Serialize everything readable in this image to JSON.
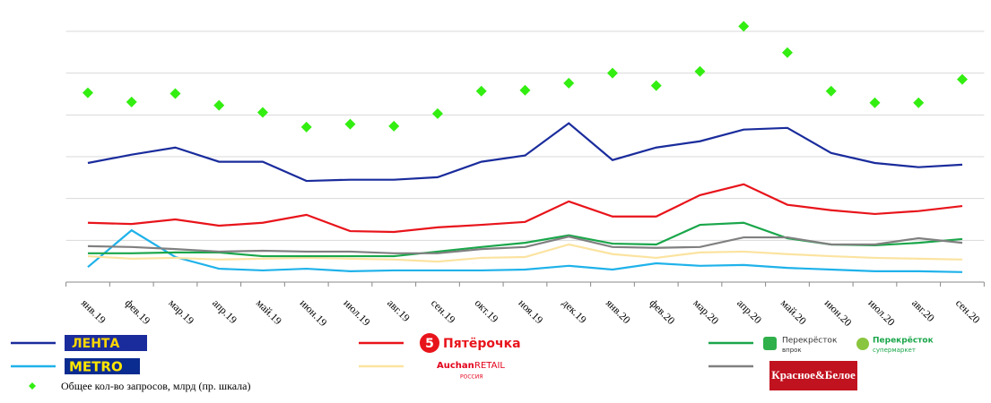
{
  "chart_data": {
    "type": "line",
    "categories": [
      "янв.19",
      "фев.19",
      "мар.19",
      "апр.19",
      "май.19",
      "июн.19",
      "июл.19",
      "авг.19",
      "сен.19",
      "окт.19",
      "ноя.19",
      "дек.19",
      "янв.20",
      "фев.20",
      "мар.20",
      "апр.20",
      "май.20",
      "июн.20",
      "июл.20",
      "авг.20",
      "сен.20"
    ],
    "ylim": [
      0,
      6.5
    ],
    "yticks": [
      0,
      1,
      2,
      3,
      4,
      5,
      6
    ],
    "y2lim": [
      0,
      6.5
    ],
    "grid": true,
    "series": [
      {
        "name": "ЛЕНТА",
        "color": "#1a2c9c",
        "values": [
          2.85,
          3.05,
          3.22,
          2.88,
          2.88,
          2.42,
          2.45,
          2.45,
          2.51,
          2.88,
          3.03,
          3.8,
          2.92,
          3.22,
          3.37,
          3.65,
          3.69,
          3.09,
          2.85,
          2.75,
          2.81
        ]
      },
      {
        "name": "METRO",
        "color": "#1fb2ea",
        "values": [
          0.36,
          1.24,
          0.6,
          0.32,
          0.28,
          0.32,
          0.26,
          0.28,
          0.28,
          0.28,
          0.3,
          0.39,
          0.3,
          0.45,
          0.39,
          0.41,
          0.34,
          0.3,
          0.26,
          0.26,
          0.24
        ]
      },
      {
        "name": "Пятёрочка",
        "logo_mark": "5",
        "color": "#e8141b",
        "values": [
          1.42,
          1.39,
          1.5,
          1.35,
          1.42,
          1.61,
          1.22,
          1.2,
          1.31,
          1.37,
          1.44,
          1.93,
          1.57,
          1.57,
          2.08,
          2.34,
          1.85,
          1.72,
          1.63,
          1.7,
          1.82
        ]
      },
      {
        "name": "Auchan",
        "logo_texts": [
          "RETAIL",
          "РОССИЯ"
        ],
        "color": "#fbe3a0",
        "values": [
          0.62,
          0.56,
          0.58,
          0.54,
          0.56,
          0.58,
          0.56,
          0.54,
          0.49,
          0.58,
          0.6,
          0.9,
          0.67,
          0.58,
          0.71,
          0.73,
          0.67,
          0.62,
          0.58,
          0.56,
          0.54
        ]
      },
      {
        "name": "Перекрёсток",
        "logo_texts": [
          "впрок",
          "Перекрёсток",
          "супермаркет"
        ],
        "color": "#1aa64a",
        "values": [
          0.69,
          0.69,
          0.71,
          0.71,
          0.62,
          0.62,
          0.62,
          0.62,
          0.73,
          0.84,
          0.94,
          1.12,
          0.92,
          0.9,
          1.37,
          1.42,
          1.05,
          0.9,
          0.88,
          0.94,
          1.03
        ]
      },
      {
        "name": "Красное&Белое",
        "color": "#808080",
        "values": [
          0.86,
          0.84,
          0.79,
          0.73,
          0.75,
          0.73,
          0.73,
          0.69,
          0.69,
          0.79,
          0.84,
          1.09,
          0.84,
          0.82,
          0.84,
          1.07,
          1.07,
          0.9,
          0.9,
          1.05,
          0.94
        ]
      },
      {
        "name": "Общее кол-во запросов, млрд (пр. шкала)",
        "type": "scatter",
        "axis": "y2",
        "color": "#33ee11",
        "values": [
          4.53,
          4.31,
          4.51,
          4.23,
          4.06,
          3.71,
          3.78,
          3.73,
          4.03,
          4.57,
          4.59,
          4.76,
          5.0,
          4.7,
          5.04,
          6.12,
          5.49,
          4.57,
          4.29,
          4.29,
          4.85
        ]
      }
    ]
  }
}
